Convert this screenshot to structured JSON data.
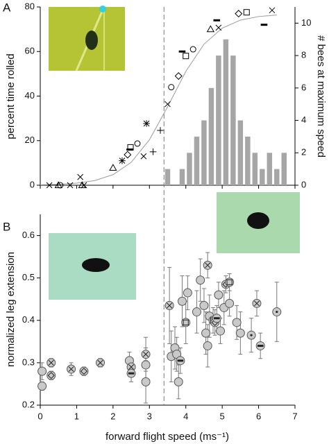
{
  "chart_data": [
    {
      "type": "scatter",
      "panel": "A",
      "ylabel": "percent time rolled",
      "y2label": "# bees at maximum speed",
      "xlim": [
        0,
        7
      ],
      "ylim": [
        0,
        80
      ],
      "yticks": [
        0,
        20,
        40,
        60,
        80
      ],
      "y2lim": [
        0,
        11
      ],
      "y2ticks": [
        0,
        2,
        4,
        6,
        8,
        10
      ],
      "vline": 3.4,
      "points": {
        "x": [
          0.25,
          0.5,
          0.55,
          0.82,
          1.15,
          1.2,
          1.1,
          2.0,
          2.25,
          2.4,
          2.46,
          2.48,
          2.67,
          2.92,
          2.84,
          3.1,
          3.3,
          3.5,
          3.6,
          3.8,
          3.9,
          4.0,
          4.2,
          4.68,
          4.9,
          4.85,
          5.45,
          5.67,
          6.37,
          6.15
        ],
        "values": [
          0,
          0,
          0,
          0,
          0,
          0,
          3.7,
          7.8,
          11,
          13.7,
          16,
          17,
          18.7,
          27.7,
          13,
          15,
          24.6,
          36.4,
          44,
          49,
          60,
          58,
          61,
          70,
          70.7,
          74,
          77,
          77.6,
          78.5,
          72
        ],
        "markers": [
          "x",
          "triangle",
          "circle",
          "x",
          "triangle",
          "x",
          "x",
          "triangle",
          "asterisk",
          "diamond",
          "dash",
          "square",
          "circle",
          "asterisk",
          "x",
          "plus",
          "plus",
          "x",
          "circle",
          "diamond",
          "dash",
          "square",
          "circle",
          "triangle",
          "x",
          "dash",
          "diamond",
          "square",
          "x",
          "dash"
        ]
      },
      "curve": {
        "x": [
          0,
          0.5,
          1,
          1.5,
          2,
          2.5,
          3,
          3.5,
          4,
          4.5,
          5,
          5.5,
          6,
          6.5
        ],
        "values": [
          0.17,
          0.4,
          0.92,
          2.11,
          4.75,
          10.3,
          20.4,
          35.2,
          51.1,
          63.3,
          70.5,
          74.1,
          75.7,
          76.4
        ]
      },
      "histogram": {
        "axis": "y2",
        "color": "#a6a6a6",
        "bins": [
          3.4,
          3.6,
          3.8,
          4.0,
          4.2,
          4.4,
          4.6,
          4.8,
          5.0,
          5.2,
          5.4,
          5.6,
          5.8,
          6.0,
          6.2,
          6.4,
          6.6,
          6.8
        ],
        "counts": [
          1,
          0,
          1,
          2,
          3,
          4,
          6,
          8,
          9,
          8,
          4,
          3,
          2,
          1,
          2,
          1,
          2
        ]
      }
    },
    {
      "type": "errorbar",
      "panel": "B",
      "ylabel": "normalized leg extension",
      "xlabel": "forward flight speed (ms⁻¹)",
      "xlim": [
        0,
        7
      ],
      "xticks": [
        0,
        1,
        2,
        3,
        4,
        5,
        6,
        7
      ],
      "ylim": [
        0.2,
        0.65
      ],
      "yticks": [
        0.2,
        0.3,
        0.4,
        0.5,
        0.6
      ],
      "points": {
        "x": [
          0.05,
          0.05,
          0.3,
          0.3,
          0.85,
          1.2,
          1.65,
          2.45,
          2.5,
          2.5,
          2.9,
          2.9,
          2.9,
          3.55,
          3.6,
          3.7,
          3.75,
          3.8,
          3.85,
          3.9,
          4.0,
          4.05,
          4.3,
          4.4,
          4.5,
          4.55,
          4.6,
          4.6,
          4.65,
          4.75,
          4.8,
          4.85,
          4.9,
          4.95,
          5.05,
          5.1,
          5.2,
          5.2,
          5.4,
          5.5,
          5.8,
          5.95,
          6.05,
          6.5
        ],
        "values": [
          0.245,
          0.28,
          0.27,
          0.3,
          0.285,
          0.28,
          0.3,
          0.305,
          0.29,
          0.275,
          0.32,
          0.295,
          0.255,
          0.435,
          0.315,
          0.335,
          0.32,
          0.255,
          0.305,
          0.445,
          0.395,
          0.465,
          0.42,
          0.495,
          0.435,
          0.37,
          0.34,
          0.53,
          0.41,
          0.4,
          0.395,
          0.405,
          0.46,
          0.375,
          0.43,
          0.485,
          0.49,
          0.44,
          0.395,
          0.37,
          0.365,
          0.44,
          0.34,
          0.42
        ],
        "errors": [
          0.01,
          0.02,
          0.01,
          0.01,
          0.015,
          0.01,
          0.01,
          0.02,
          0.02,
          0.02,
          0.04,
          0.04,
          0.05,
          0.09,
          0.06,
          0.05,
          0.04,
          0.04,
          0.03,
          0.06,
          0.05,
          0.04,
          0.05,
          0.05,
          0.04,
          0.05,
          0.05,
          0.03,
          0.05,
          0.03,
          0.03,
          0.03,
          0.03,
          0.03,
          0.04,
          0.02,
          0.02,
          0.03,
          0.04,
          0.05,
          0.04,
          0.03,
          0.03,
          0.07
        ],
        "markers": [
          "plain",
          "plain",
          "diamond",
          "x",
          "x",
          "diamond",
          "x",
          "plain",
          "x",
          "dash",
          "x",
          "plain",
          "plain",
          "x",
          "plain",
          "plain",
          "plain",
          "plain",
          "dash",
          "plain",
          "square",
          "plain",
          "plain",
          "plain",
          "plain",
          "plain",
          "plain",
          "x",
          "plain",
          "square",
          "diamond",
          "dash",
          "plain",
          "plain",
          "plain",
          "diamond",
          "square",
          "plain",
          "plain",
          "plain",
          "dot",
          "x",
          "dash",
          "dot"
        ]
      }
    }
  ]
}
